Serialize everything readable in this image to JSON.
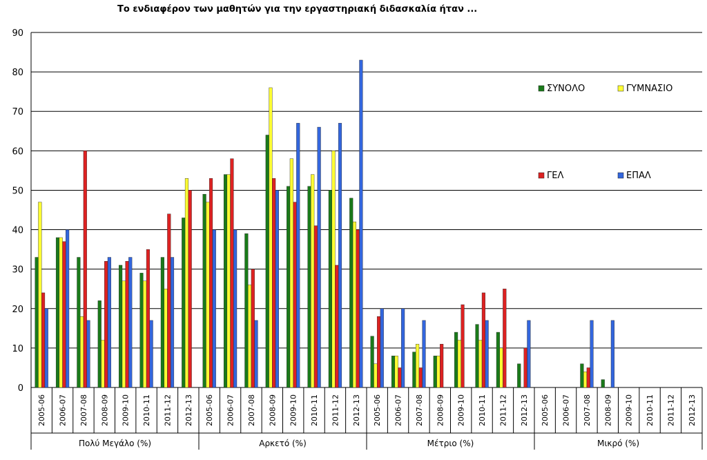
{
  "chart_data": {
    "type": "bar",
    "title": "Το ενδιαφέρον των μαθητών για την εργαστηριακή διδασκαλία ήταν ...",
    "ylim": [
      0,
      90
    ],
    "yticks": [
      0,
      10,
      20,
      30,
      40,
      50,
      60,
      70,
      80,
      90
    ],
    "grid": true,
    "years": [
      "2005-06",
      "2006-07",
      "2007-08",
      "2008-09",
      "2009-10",
      "2010-11",
      "2011-12",
      "2012-13"
    ],
    "groups": [
      "Πολύ Μεγάλο (%)",
      "Αρκετό (%)",
      "Μέτριο (%)",
      "Μικρό (%)"
    ],
    "series": [
      {
        "name": "ΣΥΝΟΛΟ",
        "color": "#1a7a1a",
        "values": [
          [
            33,
            38,
            33,
            22,
            31,
            29,
            33,
            43
          ],
          [
            49,
            54,
            39,
            64,
            51,
            51,
            50,
            48
          ],
          [
            13,
            8,
            9,
            8,
            14,
            16,
            14,
            6
          ],
          [
            0,
            0,
            6,
            2,
            0,
            0,
            0,
            0
          ]
        ]
      },
      {
        "name": "ΓΥΜΝΑΣΙΟ",
        "color": "#ffff33",
        "values": [
          [
            47,
            38,
            18,
            12,
            27,
            27,
            25,
            53
          ],
          [
            47,
            54,
            26,
            76,
            58,
            54,
            60,
            42
          ],
          [
            6,
            8,
            11,
            8,
            12,
            12,
            10,
            0
          ],
          [
            0,
            0,
            4,
            0,
            0,
            0,
            0,
            0
          ]
        ]
      },
      {
        "name": "ΓΕΛ",
        "color": "#dd2222",
        "values": [
          [
            24,
            37,
            60,
            32,
            32,
            35,
            44,
            50
          ],
          [
            53,
            58,
            30,
            53,
            47,
            41,
            31,
            40
          ],
          [
            18,
            5,
            5,
            11,
            21,
            24,
            25,
            10
          ],
          [
            0,
            0,
            5,
            0,
            0,
            0,
            0,
            0
          ]
        ]
      },
      {
        "name": "ΕΠΑΛ",
        "color": "#3366dd",
        "values": [
          [
            20,
            40,
            17,
            33,
            33,
            17,
            33,
            0
          ],
          [
            40,
            40,
            17,
            50,
            67,
            66,
            67,
            83
          ],
          [
            20,
            20,
            17,
            0,
            0,
            17,
            0,
            17
          ],
          [
            0,
            0,
            17,
            17,
            0,
            0,
            0,
            0
          ]
        ]
      }
    ],
    "legend": {
      "position": "top-right",
      "columns": 2
    }
  }
}
